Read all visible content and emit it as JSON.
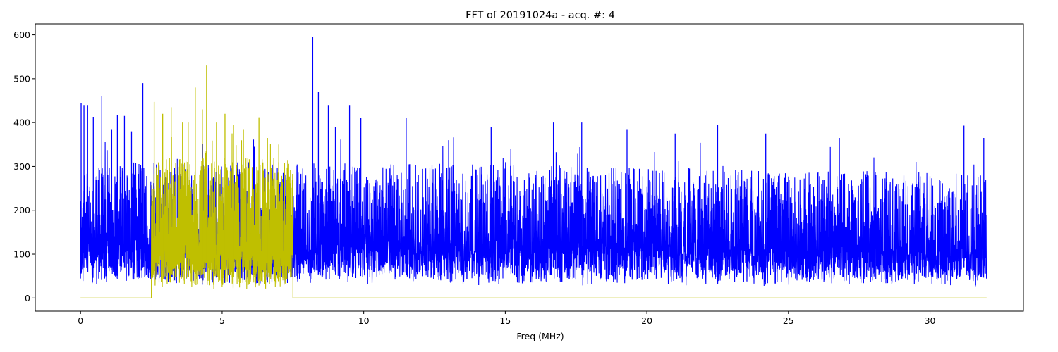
{
  "chart_data": {
    "type": "line",
    "title": "FFT of 20191024a - acq. #: 4",
    "xlabel": "Freq (MHz)",
    "ylabel": "",
    "xlim": [
      -1.6,
      33.3
    ],
    "ylim": [
      -30,
      625
    ],
    "xticks": [
      0,
      5,
      10,
      15,
      20,
      25,
      30
    ],
    "yticks": [
      0,
      100,
      200,
      300,
      400,
      500,
      600
    ],
    "xtick_labels": [
      "0",
      "5",
      "10",
      "15",
      "20",
      "25",
      "30"
    ],
    "ytick_labels": [
      "0",
      "100",
      "200",
      "300",
      "400",
      "500",
      "600"
    ],
    "grid": false,
    "legend": "none",
    "series": [
      {
        "color": "#0000ff",
        "x_range": [
          0,
          32
        ],
        "typical_band": [
          30,
          310
        ],
        "peaks": [
          {
            "x": 0.02,
            "y": 445
          },
          {
            "x": 0.12,
            "y": 440
          },
          {
            "x": 0.25,
            "y": 440
          },
          {
            "x": 0.45,
            "y": 413
          },
          {
            "x": 0.75,
            "y": 460
          },
          {
            "x": 1.1,
            "y": 385
          },
          {
            "x": 1.3,
            "y": 418
          },
          {
            "x": 1.55,
            "y": 415
          },
          {
            "x": 1.8,
            "y": 380
          },
          {
            "x": 2.2,
            "y": 490
          },
          {
            "x": 8.2,
            "y": 595
          },
          {
            "x": 8.4,
            "y": 470
          },
          {
            "x": 8.75,
            "y": 440
          },
          {
            "x": 9.0,
            "y": 390
          },
          {
            "x": 9.5,
            "y": 440
          },
          {
            "x": 9.9,
            "y": 410
          },
          {
            "x": 11.5,
            "y": 410
          },
          {
            "x": 13.0,
            "y": 360
          },
          {
            "x": 14.5,
            "y": 390
          },
          {
            "x": 16.7,
            "y": 400
          },
          {
            "x": 17.7,
            "y": 400
          },
          {
            "x": 19.3,
            "y": 385
          },
          {
            "x": 21.0,
            "y": 375
          },
          {
            "x": 22.5,
            "y": 395
          },
          {
            "x": 24.2,
            "y": 375
          },
          {
            "x": 26.8,
            "y": 365
          },
          {
            "x": 31.2,
            "y": 393
          },
          {
            "x": 31.9,
            "y": 365
          }
        ]
      },
      {
        "color": "#bfbf00",
        "x_range": [
          0,
          32
        ],
        "passband": [
          2.5,
          7.5
        ],
        "outside_value": 0,
        "typical_band": [
          20,
          320
        ],
        "peaks": [
          {
            "x": 2.6,
            "y": 447
          },
          {
            "x": 2.9,
            "y": 420
          },
          {
            "x": 3.2,
            "y": 435
          },
          {
            "x": 3.6,
            "y": 400
          },
          {
            "x": 3.8,
            "y": 400
          },
          {
            "x": 4.05,
            "y": 480
          },
          {
            "x": 4.3,
            "y": 430
          },
          {
            "x": 4.45,
            "y": 530
          },
          {
            "x": 4.8,
            "y": 400
          },
          {
            "x": 5.1,
            "y": 420
          },
          {
            "x": 5.4,
            "y": 395
          },
          {
            "x": 5.75,
            "y": 385
          },
          {
            "x": 6.3,
            "y": 412
          },
          {
            "x": 6.6,
            "y": 365
          },
          {
            "x": 7.0,
            "y": 350
          }
        ]
      }
    ]
  }
}
